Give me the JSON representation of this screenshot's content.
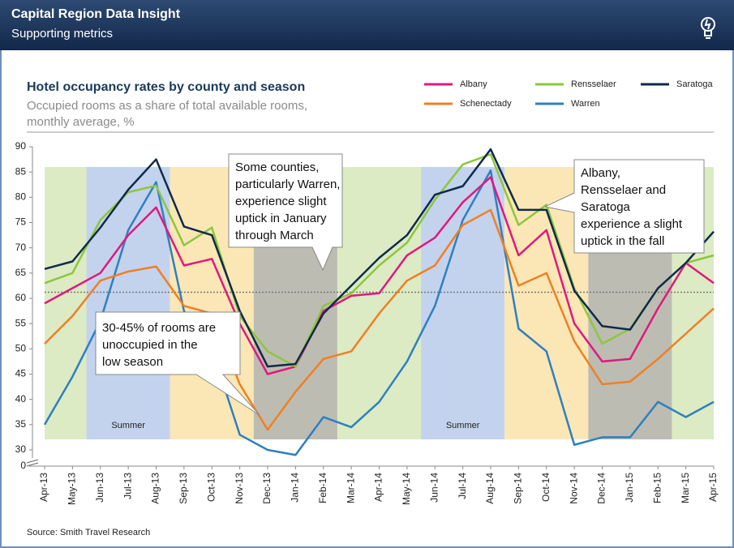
{
  "header": {
    "title": "Capital Region Data Insight",
    "subtitle": "Supporting metrics"
  },
  "chart_data": {
    "type": "line",
    "title": "Hotel occupancy rates by county and season",
    "subtitle": [
      "Occupied rooms as a share of total available rooms,",
      "monthly average, %"
    ],
    "source": "Source: Smith Travel Research",
    "categories": [
      "Apr-13",
      "May-13",
      "Jun-13",
      "Jul-13",
      "Aug-13",
      "Sep-13",
      "Oct-13",
      "Nov-13",
      "Dec-13",
      "Jan-14",
      "Feb-14",
      "Mar-14",
      "Apr-14",
      "May-14",
      "Jun-14",
      "Jul-14",
      "Aug-14",
      "Sep-14",
      "Oct-14",
      "Nov-14",
      "Dec-14",
      "Jan-15",
      "Feb-15",
      "Mar-15",
      "Apr-15"
    ],
    "series": [
      {
        "name": "Warren",
        "color": "#2f7fc1",
        "values": [
          35,
          44.5,
          55.5,
          73.5,
          83,
          57.5,
          50,
          33,
          30,
          29,
          36.5,
          34.5,
          39.5,
          47.5,
          58.5,
          75.5,
          85.3,
          54,
          49.5,
          31,
          32.5,
          32.5,
          39.5,
          36.5,
          39.5
        ]
      },
      {
        "name": "Schenectady",
        "color": "#f07f23",
        "values": [
          51,
          56.5,
          63.5,
          65.3,
          66.3,
          58.5,
          57,
          43,
          34,
          41.5,
          48,
          49.5,
          57,
          63.5,
          66.5,
          74.5,
          77.5,
          62.5,
          65,
          51.5,
          43,
          43.5,
          48,
          53,
          58
        ]
      },
      {
        "name": "Albany",
        "color": "#e0197d",
        "values": [
          59,
          62,
          65,
          72.5,
          78,
          66.5,
          67.8,
          55,
          45,
          46.5,
          57.5,
          60.5,
          61,
          68.5,
          72,
          79,
          84,
          68.5,
          73.5,
          55,
          47.5,
          48,
          58,
          67,
          63
        ]
      },
      {
        "name": "Rensselaer",
        "color": "#8dc63f",
        "values": [
          63,
          65,
          75.5,
          81,
          82.3,
          70.5,
          74,
          56.5,
          49.5,
          46.5,
          58.5,
          61,
          66.5,
          71,
          79.5,
          86.5,
          88.5,
          74.5,
          78.5,
          62,
          51,
          54,
          62,
          67,
          68.5
        ]
      },
      {
        "name": "Saratoga",
        "color": "#0f2a4a",
        "values": [
          65.8,
          67.3,
          74,
          81.5,
          87.5,
          74.2,
          72.5,
          57.5,
          46.5,
          47,
          57,
          62.5,
          68,
          72.5,
          80.5,
          82.2,
          89.5,
          77.5,
          77.5,
          61.5,
          54.5,
          53.8,
          62,
          67,
          73.2
        ]
      }
    ],
    "ylim": [
      0,
      90
    ],
    "axis_break": [
      0,
      30
    ],
    "yticks": [
      0,
      30,
      35,
      40,
      45,
      50,
      55,
      60,
      65,
      70,
      75,
      80,
      85,
      90
    ],
    "reference_line": 61.2,
    "season_bands": [
      {
        "from": "Apr-13",
        "to": "May-13",
        "color": "#dcebc4"
      },
      {
        "from": "Jun-13",
        "to": "Aug-13",
        "color": "#c3d3ee",
        "label": "Summer"
      },
      {
        "from": "Sep-13",
        "to": "Nov-13",
        "color": "#fbe7b5"
      },
      {
        "from": "Dec-13",
        "to": "Feb-14",
        "color": "#bdbcb2"
      },
      {
        "from": "Mar-14",
        "to": "May-14",
        "color": "#dcebc4"
      },
      {
        "from": "Jun-14",
        "to": "Aug-14",
        "color": "#c3d3ee",
        "label": "Summer"
      },
      {
        "from": "Sep-14",
        "to": "Nov-14",
        "color": "#fbe7b5"
      },
      {
        "from": "Dec-14",
        "to": "Feb-15",
        "color": "#bdbcb2"
      },
      {
        "from": "Mar-15",
        "to": "Apr-15",
        "color": "#dcebc4"
      }
    ],
    "annotations": [
      {
        "text": [
          "Some counties,",
          "particularly Warren,",
          "experience slight",
          "uptick in January",
          "through March"
        ]
      },
      {
        "text": [
          "Albany,",
          "Rensselaer and",
          "Saratoga",
          "experience a slight",
          "uptick in the fall"
        ]
      },
      {
        "text": [
          "30-45% of rooms are",
          "unoccupied in the",
          "low season"
        ]
      }
    ]
  }
}
